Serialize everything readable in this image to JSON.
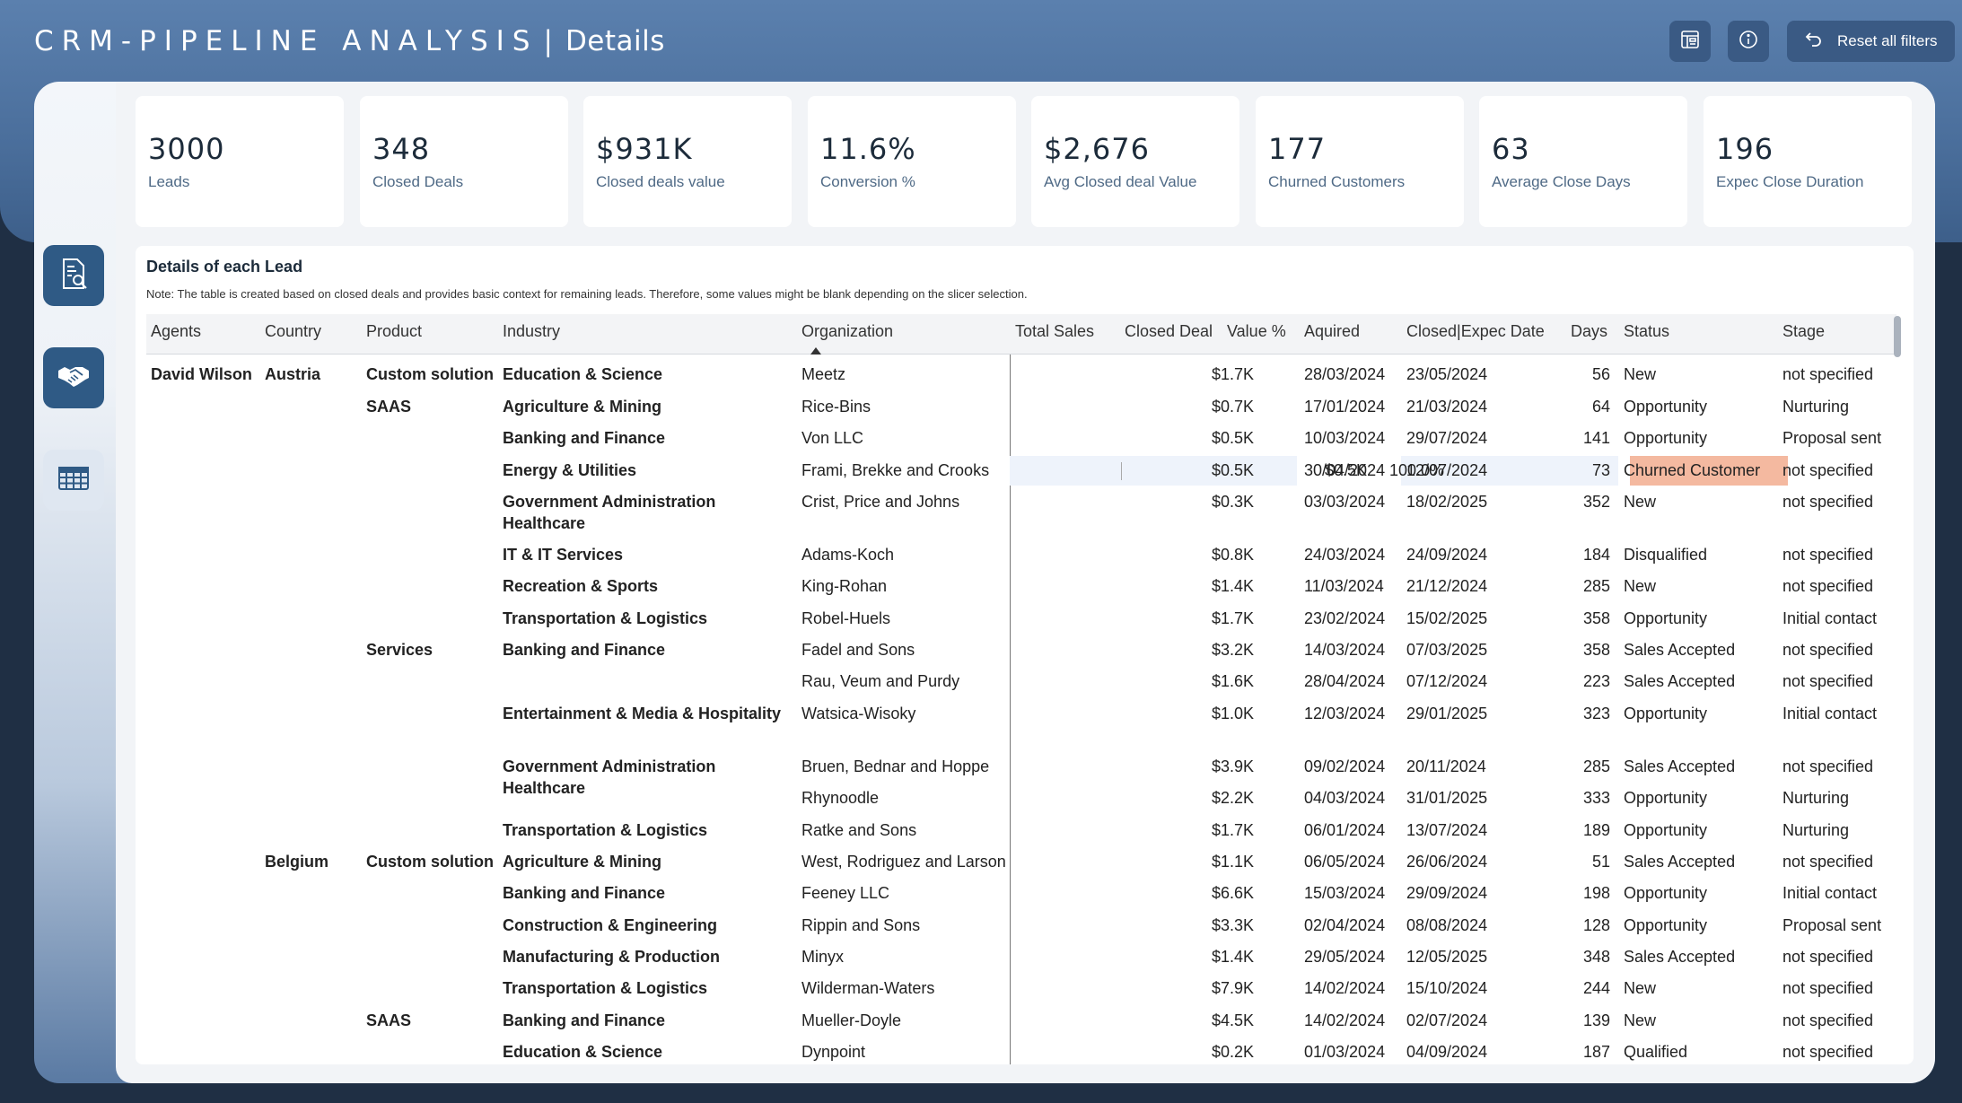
{
  "header": {
    "title_main": "CRM-PIPELINE ANALYSIS",
    "title_sep": "|",
    "title_sub": "Details",
    "reset_label": "Reset all filters"
  },
  "icons": {
    "top": [
      "report-icon",
      "info-icon",
      "undo-icon"
    ],
    "nav": [
      "document-search-icon",
      "handshake-icon",
      "table-grid-icon"
    ]
  },
  "kpis": [
    {
      "value": "3000",
      "label": "Leads"
    },
    {
      "value": "348",
      "label": "Closed Deals"
    },
    {
      "value": "$931K",
      "label": "Closed deals value"
    },
    {
      "value": "11.6%",
      "label": "Conversion %"
    },
    {
      "value": "$2,676",
      "label": "Avg Closed deal Value"
    },
    {
      "value": "177",
      "label": "Churned Customers"
    },
    {
      "value": "63",
      "label": "Average Close Days"
    },
    {
      "value": "196",
      "label": "Expec Close Duration"
    }
  ],
  "table": {
    "title": "Details of each Lead",
    "note": "Note: The table is created based on closed deals and provides basic context for remaining leads. Therefore, some values might be blank depending on the slicer selection.",
    "columns": [
      "Agents",
      "Country",
      "Product",
      "Industry",
      "Organization",
      "Total Sales",
      "Closed Deal",
      "Value %",
      "Aquired",
      "Closed|Expec Date",
      "Days",
      "Status",
      "Stage"
    ],
    "rows": [
      {
        "agent": "David Wilson",
        "country": "Austria",
        "product": "Custom solution",
        "industry": "Education & Science",
        "org": "Meetz",
        "sales": "$1.7K",
        "closed": "",
        "pct": "",
        "acq": "28/03/2024",
        "cdate": "23/05/2024",
        "days": "56",
        "status": "New",
        "stage": "not specified"
      },
      {
        "agent": "",
        "country": "",
        "product": "SAAS",
        "industry": "Agriculture & Mining",
        "org": "Rice-Bins",
        "sales": "$0.7K",
        "closed": "",
        "pct": "",
        "acq": "17/01/2024",
        "cdate": "21/03/2024",
        "days": "64",
        "status": "Opportunity",
        "stage": "Nurturing"
      },
      {
        "agent": "",
        "country": "",
        "product": "",
        "industry": "Banking and Finance",
        "org": "Von LLC",
        "sales": "$0.5K",
        "closed": "",
        "pct": "",
        "acq": "10/03/2024",
        "cdate": "29/07/2024",
        "days": "141",
        "status": "Opportunity",
        "stage": "Proposal sent"
      },
      {
        "agent": "",
        "country": "",
        "product": "",
        "industry": "Energy & Utilities",
        "org": "Frami, Brekke and Crooks",
        "sales": "$0.5K",
        "closed": "$0.5K",
        "pct": "100.0%",
        "acq": "30/04/2024",
        "cdate": "12/07/2024",
        "days": "73",
        "status": "Churned Customer",
        "stage": "not specified",
        "highlight": true
      },
      {
        "agent": "",
        "country": "",
        "product": "",
        "industry": "Government Administration Healthcare",
        "org": "Crist, Price and Johns",
        "sales": "$0.3K",
        "closed": "",
        "pct": "",
        "acq": "03/03/2024",
        "cdate": "18/02/2025",
        "days": "352",
        "status": "New",
        "stage": "not specified"
      },
      {
        "agent": "",
        "country": "",
        "product": "",
        "industry": "IT & IT Services",
        "org": "Adams-Koch",
        "sales": "$0.8K",
        "closed": "",
        "pct": "",
        "acq": "24/03/2024",
        "cdate": "24/09/2024",
        "days": "184",
        "status": "Disqualified",
        "stage": "not specified"
      },
      {
        "agent": "",
        "country": "",
        "product": "",
        "industry": "Recreation & Sports",
        "org": "King-Rohan",
        "sales": "$1.4K",
        "closed": "",
        "pct": "",
        "acq": "11/03/2024",
        "cdate": "21/12/2024",
        "days": "285",
        "status": "New",
        "stage": "not specified"
      },
      {
        "agent": "",
        "country": "",
        "product": "",
        "industry": "Transportation & Logistics",
        "org": "Robel-Huels",
        "sales": "$1.7K",
        "closed": "",
        "pct": "",
        "acq": "23/02/2024",
        "cdate": "15/02/2025",
        "days": "358",
        "status": "Opportunity",
        "stage": "Initial contact"
      },
      {
        "agent": "",
        "country": "",
        "product": "Services",
        "industry": "Banking and Finance",
        "org": "Fadel and Sons",
        "sales": "$3.2K",
        "closed": "",
        "pct": "",
        "acq": "14/03/2024",
        "cdate": "07/03/2025",
        "days": "358",
        "status": "Sales Accepted",
        "stage": "not specified"
      },
      {
        "agent": "",
        "country": "",
        "product": "",
        "industry": "",
        "org": "Rau, Veum and Purdy",
        "sales": "$1.6K",
        "closed": "",
        "pct": "",
        "acq": "28/04/2024",
        "cdate": "07/12/2024",
        "days": "223",
        "status": "Sales Accepted",
        "stage": "not specified"
      },
      {
        "agent": "",
        "country": "",
        "product": "",
        "industry": "Entertainment & Media & Hospitality",
        "org": "Watsica-Wisoky",
        "sales": "$1.0K",
        "closed": "",
        "pct": "",
        "acq": "12/03/2024",
        "cdate": "29/01/2025",
        "days": "323",
        "status": "Opportunity",
        "stage": "Initial contact"
      },
      {
        "agent": "",
        "country": "",
        "product": "",
        "industry": "Government Administration Healthcare",
        "org": "Bruen, Bednar and Hoppe",
        "sales": "$3.9K",
        "closed": "",
        "pct": "",
        "acq": "09/02/2024",
        "cdate": "20/11/2024",
        "days": "285",
        "status": "Sales Accepted",
        "stage": "not specified"
      },
      {
        "agent": "",
        "country": "",
        "product": "",
        "industry": "",
        "org": "Rhynoodle",
        "sales": "$2.2K",
        "closed": "",
        "pct": "",
        "acq": "04/03/2024",
        "cdate": "31/01/2025",
        "days": "333",
        "status": "Opportunity",
        "stage": "Nurturing"
      },
      {
        "agent": "",
        "country": "",
        "product": "",
        "industry": "Transportation & Logistics",
        "org": "Ratke and Sons",
        "sales": "$1.7K",
        "closed": "",
        "pct": "",
        "acq": "06/01/2024",
        "cdate": "13/07/2024",
        "days": "189",
        "status": "Opportunity",
        "stage": "Nurturing"
      },
      {
        "agent": "",
        "country": "Belgium",
        "product": "Custom solution",
        "industry": "Agriculture & Mining",
        "org": "West, Rodriguez and Larson",
        "sales": "$1.1K",
        "closed": "",
        "pct": "",
        "acq": "06/05/2024",
        "cdate": "26/06/2024",
        "days": "51",
        "status": "Sales Accepted",
        "stage": "not specified"
      },
      {
        "agent": "",
        "country": "",
        "product": "",
        "industry": "Banking and Finance",
        "org": "Feeney LLC",
        "sales": "$6.6K",
        "closed": "",
        "pct": "",
        "acq": "15/03/2024",
        "cdate": "29/09/2024",
        "days": "198",
        "status": "Opportunity",
        "stage": "Initial contact"
      },
      {
        "agent": "",
        "country": "",
        "product": "",
        "industry": "Construction & Engineering",
        "org": "Rippin and Sons",
        "sales": "$3.3K",
        "closed": "",
        "pct": "",
        "acq": "02/04/2024",
        "cdate": "08/08/2024",
        "days": "128",
        "status": "Opportunity",
        "stage": "Proposal sent"
      },
      {
        "agent": "",
        "country": "",
        "product": "",
        "industry": "Manufacturing & Production",
        "org": "Minyx",
        "sales": "$1.4K",
        "closed": "",
        "pct": "",
        "acq": "29/05/2024",
        "cdate": "12/05/2025",
        "days": "348",
        "status": "Sales Accepted",
        "stage": "not specified"
      },
      {
        "agent": "",
        "country": "",
        "product": "",
        "industry": "Transportation & Logistics",
        "org": "Wilderman-Waters",
        "sales": "$7.9K",
        "closed": "",
        "pct": "",
        "acq": "14/02/2024",
        "cdate": "15/10/2024",
        "days": "244",
        "status": "New",
        "stage": "not specified"
      },
      {
        "agent": "",
        "country": "",
        "product": "SAAS",
        "industry": "Banking and Finance",
        "org": "Mueller-Doyle",
        "sales": "$4.5K",
        "closed": "",
        "pct": "",
        "acq": "14/02/2024",
        "cdate": "02/07/2024",
        "days": "139",
        "status": "New",
        "stage": "not specified"
      },
      {
        "agent": "",
        "country": "",
        "product": "",
        "industry": "Education & Science",
        "org": "Dynpoint",
        "sales": "$0.2K",
        "closed": "",
        "pct": "",
        "acq": "01/03/2024",
        "cdate": "04/09/2024",
        "days": "187",
        "status": "Qualified",
        "stage": "not specified"
      }
    ]
  }
}
